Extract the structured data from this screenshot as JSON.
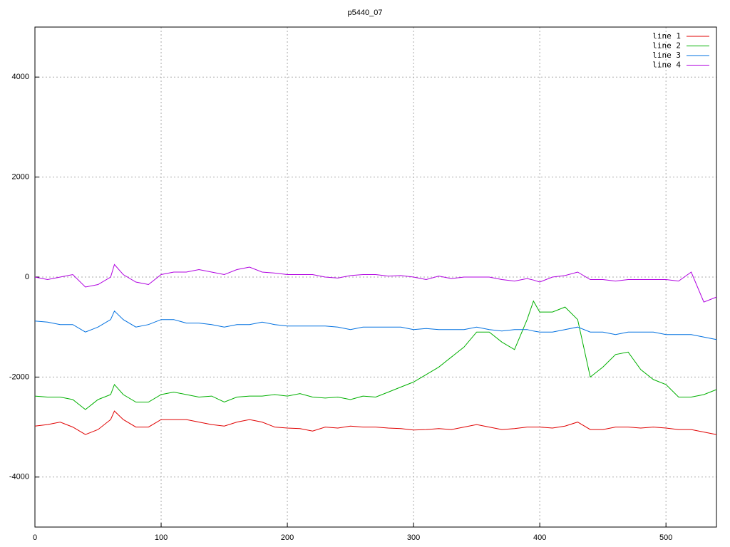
{
  "chart_data": {
    "type": "line",
    "title": "p5440_07",
    "x": [
      0,
      10,
      20,
      30,
      40,
      50,
      60,
      63,
      70,
      80,
      90,
      100,
      110,
      120,
      130,
      140,
      150,
      160,
      170,
      180,
      190,
      200,
      210,
      220,
      230,
      240,
      250,
      260,
      270,
      280,
      290,
      300,
      310,
      320,
      330,
      340,
      350,
      360,
      370,
      380,
      390,
      395,
      400,
      410,
      420,
      430,
      440,
      450,
      460,
      470,
      480,
      490,
      500,
      510,
      520,
      530,
      540
    ],
    "series": [
      {
        "name": "line 1",
        "color": "#e00000",
        "values": [
          -2980,
          -2950,
          -2900,
          -3000,
          -3150,
          -3050,
          -2850,
          -2680,
          -2850,
          -3000,
          -3000,
          -2850,
          -2850,
          -2850,
          -2900,
          -2950,
          -2980,
          -2900,
          -2850,
          -2900,
          -3000,
          -3020,
          -3030,
          -3080,
          -3000,
          -3020,
          -2980,
          -3000,
          -3000,
          -3020,
          -3030,
          -3060,
          -3050,
          -3030,
          -3050,
          -3000,
          -2950,
          -3000,
          -3050,
          -3030,
          -3000,
          -3000,
          -3000,
          -3020,
          -2980,
          -2900,
          -3050,
          -3050,
          -3000,
          -3000,
          -3020,
          -3000,
          -3020,
          -3050,
          -3050,
          -3100,
          -3150
        ]
      },
      {
        "name": "line 2",
        "color": "#00b000",
        "values": [
          -2380,
          -2400,
          -2400,
          -2450,
          -2650,
          -2450,
          -2350,
          -2150,
          -2350,
          -2500,
          -2500,
          -2350,
          -2300,
          -2350,
          -2400,
          -2380,
          -2500,
          -2400,
          -2380,
          -2380,
          -2350,
          -2380,
          -2330,
          -2400,
          -2420,
          -2400,
          -2450,
          -2380,
          -2400,
          -2300,
          -2200,
          -2100,
          -1950,
          -1800,
          -1600,
          -1400,
          -1100,
          -1100,
          -1300,
          -1450,
          -850,
          -480,
          -700,
          -700,
          -600,
          -850,
          -2000,
          -1800,
          -1550,
          -1500,
          -1850,
          -2050,
          -2150,
          -2400,
          -2400,
          -2350,
          -2250
        ]
      },
      {
        "name": "line 3",
        "color": "#0070e0",
        "values": [
          -880,
          -900,
          -950,
          -950,
          -1100,
          -1000,
          -850,
          -680,
          -850,
          -1000,
          -950,
          -850,
          -850,
          -920,
          -920,
          -950,
          -1000,
          -950,
          -950,
          -900,
          -950,
          -980,
          -980,
          -980,
          -980,
          -1000,
          -1050,
          -1000,
          -1000,
          -1000,
          -1000,
          -1050,
          -1030,
          -1050,
          -1050,
          -1050,
          -1000,
          -1050,
          -1080,
          -1050,
          -1050,
          -1080,
          -1100,
          -1100,
          -1050,
          -1000,
          -1100,
          -1100,
          -1150,
          -1100,
          -1100,
          -1100,
          -1150,
          -1150,
          -1150,
          -1200,
          -1250
        ]
      },
      {
        "name": "line 4",
        "color": "#b000e0",
        "values": [
          0,
          -50,
          0,
          50,
          -200,
          -150,
          0,
          250,
          50,
          -100,
          -150,
          50,
          100,
          100,
          150,
          100,
          50,
          150,
          200,
          100,
          80,
          50,
          50,
          50,
          0,
          -20,
          30,
          50,
          50,
          20,
          30,
          0,
          -50,
          20,
          -30,
          0,
          0,
          0,
          -50,
          -80,
          -30,
          -60,
          -100,
          0,
          30,
          100,
          -50,
          -50,
          -80,
          -50,
          -50,
          -50,
          -50,
          -80,
          100,
          -500,
          -400
        ]
      }
    ],
    "xlim": [
      0,
      540
    ],
    "xticks": [
      0,
      100,
      200,
      300,
      400,
      500
    ],
    "ylim": [
      -5000,
      5000
    ],
    "yticks": [
      -4000,
      -2000,
      0,
      2000,
      4000
    ],
    "grid": true,
    "legend": "top-right"
  }
}
